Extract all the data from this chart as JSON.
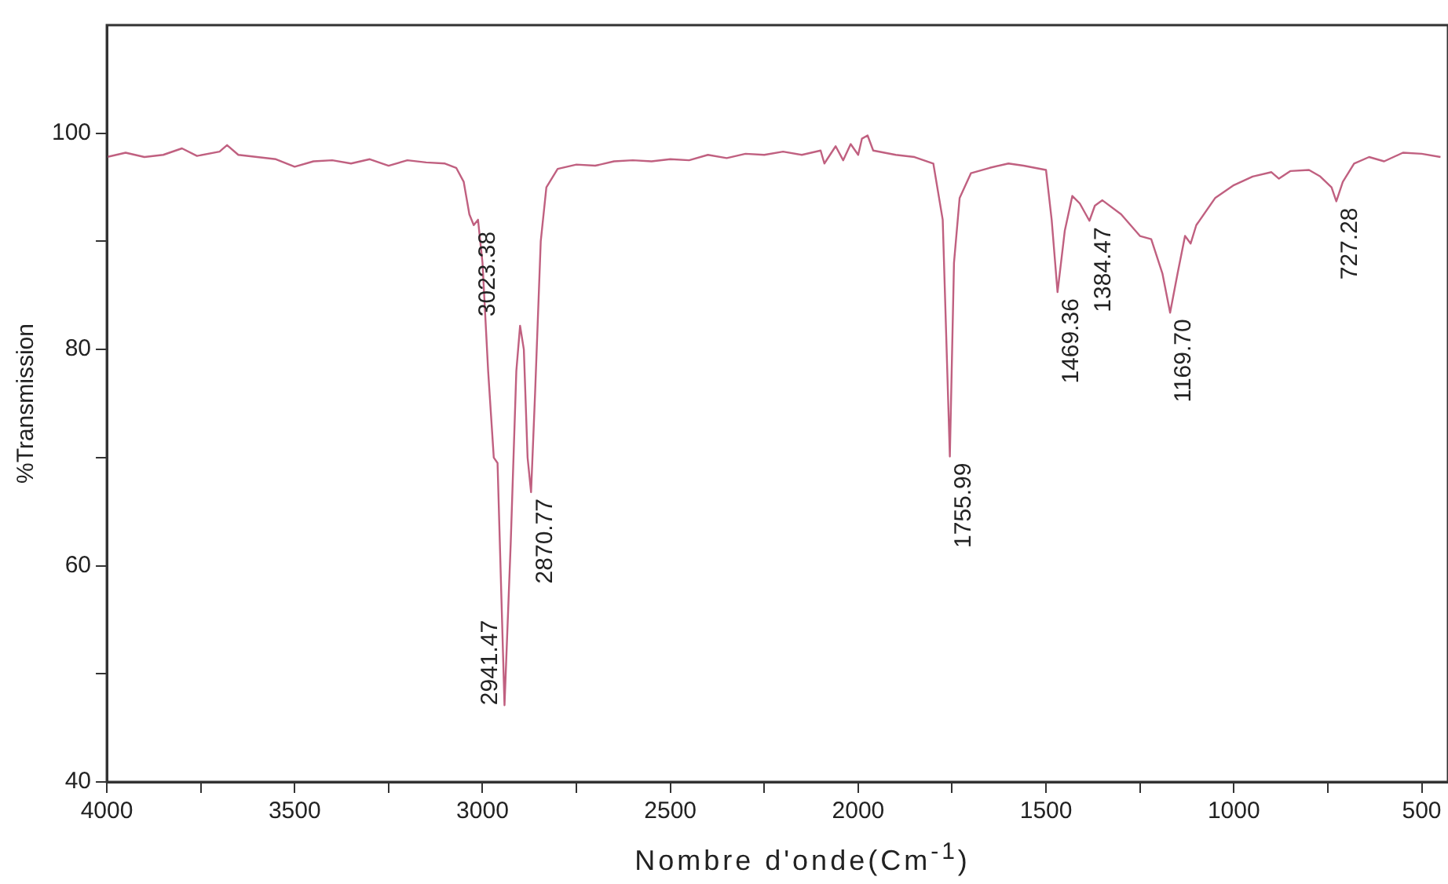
{
  "chart_data": {
    "type": "line",
    "xlabel": "Nombre d'onde(Cm$^{-1}$)",
    "ylabel": "%Transmission",
    "xlim": [
      4000,
      430
    ],
    "ylim": [
      40,
      110
    ],
    "xticks": [
      4000,
      {
        "value": 3750,
        "label": null
      },
      3500,
      {
        "value": 3250,
        "label": null
      },
      3000,
      {
        "value": 2750,
        "label": null
      },
      2500,
      {
        "value": 2250,
        "label": null
      },
      2000,
      {
        "value": 1750,
        "label": null
      },
      1500,
      {
        "value": 1250,
        "label": null
      },
      1000,
      {
        "value": 750,
        "label": null
      },
      500
    ],
    "yticks": [
      40,
      {
        "value": 50,
        "label": null
      },
      60,
      {
        "value": 70,
        "label": null
      },
      80,
      {
        "value": 90,
        "label": null
      },
      100
    ],
    "grid": false,
    "legend": false,
    "marker": "none",
    "line_style": "solid",
    "series": [
      {
        "color": "#c06080",
        "x": [
          4000,
          3950,
          3900,
          3850,
          3800,
          3760,
          3700,
          3680,
          3650,
          3600,
          3550,
          3500,
          3450,
          3400,
          3350,
          3300,
          3250,
          3200,
          3150,
          3100,
          3070,
          3050,
          3035,
          3023.38,
          3012,
          3000,
          2985,
          2970,
          2960,
          2941.47,
          2925,
          2910,
          2900,
          2890,
          2880,
          2870.77,
          2860,
          2845,
          2830,
          2800,
          2750,
          2700,
          2650,
          2600,
          2550,
          2500,
          2450,
          2400,
          2350,
          2300,
          2250,
          2200,
          2150,
          2100,
          2090,
          2060,
          2040,
          2020,
          2000,
          1990,
          1975,
          1960,
          1900,
          1850,
          1800,
          1775,
          1755.99,
          1745,
          1730,
          1700,
          1650,
          1600,
          1560,
          1500,
          1485,
          1469.36,
          1450,
          1430,
          1410,
          1384.47,
          1370,
          1350,
          1300,
          1250,
          1220,
          1190,
          1169.7,
          1150,
          1130,
          1115,
          1100,
          1050,
          1000,
          950,
          900,
          880,
          850,
          800,
          770,
          740,
          727.28,
          710,
          680,
          640,
          600,
          550,
          500,
          450
        ],
        "values": [
          97.8,
          98.2,
          97.8,
          98.0,
          98.6,
          97.9,
          98.3,
          98.9,
          98.0,
          97.8,
          97.6,
          96.9,
          97.4,
          97.5,
          97.2,
          97.6,
          97.0,
          97.5,
          97.3,
          97.2,
          96.8,
          95.5,
          92.5,
          91.5,
          92,
          88,
          78,
          70,
          69.5,
          47.1,
          62,
          78,
          82.2,
          80,
          70,
          66.8,
          76,
          90,
          95,
          96.7,
          97.1,
          97.0,
          97.4,
          97.5,
          97.4,
          97.6,
          97.5,
          98.0,
          97.7,
          98.1,
          98.0,
          98.3,
          98.0,
          98.4,
          97.2,
          98.8,
          97.5,
          99.0,
          98.0,
          99.5,
          99.8,
          98.4,
          98.0,
          97.8,
          97.2,
          92,
          70.1,
          88,
          94,
          96.3,
          96.8,
          97.2,
          97.0,
          96.6,
          92,
          85.3,
          91,
          94.2,
          93.5,
          91.9,
          93.3,
          93.8,
          92.5,
          90.5,
          90.2,
          87,
          83.4,
          87,
          90.5,
          89.8,
          91.5,
          94,
          95.2,
          96.0,
          96.4,
          95.8,
          96.5,
          96.6,
          96.0,
          95.0,
          93.7,
          95.5,
          97.2,
          97.8,
          97.4,
          98.2,
          98.1,
          97.8
        ]
      }
    ],
    "annotations": [
      {
        "text": "3023.38",
        "x": 3023.38,
        "y": 91.5
      },
      {
        "text": "2941.47",
        "x": 2941.47,
        "y": 47.1
      },
      {
        "text": "2870.77",
        "x": 2870.77,
        "y": 66.8
      },
      {
        "text": "1755.99",
        "x": 1755.99,
        "y": 70.1
      },
      {
        "text": "1469.36",
        "x": 1469.36,
        "y": 85.3
      },
      {
        "text": "1384.47",
        "x": 1384.47,
        "y": 91.9
      },
      {
        "text": "1169.70",
        "x": 1169.7,
        "y": 83.4
      },
      {
        "text": "727.28",
        "x": 727.28,
        "y": 93.7
      }
    ]
  }
}
